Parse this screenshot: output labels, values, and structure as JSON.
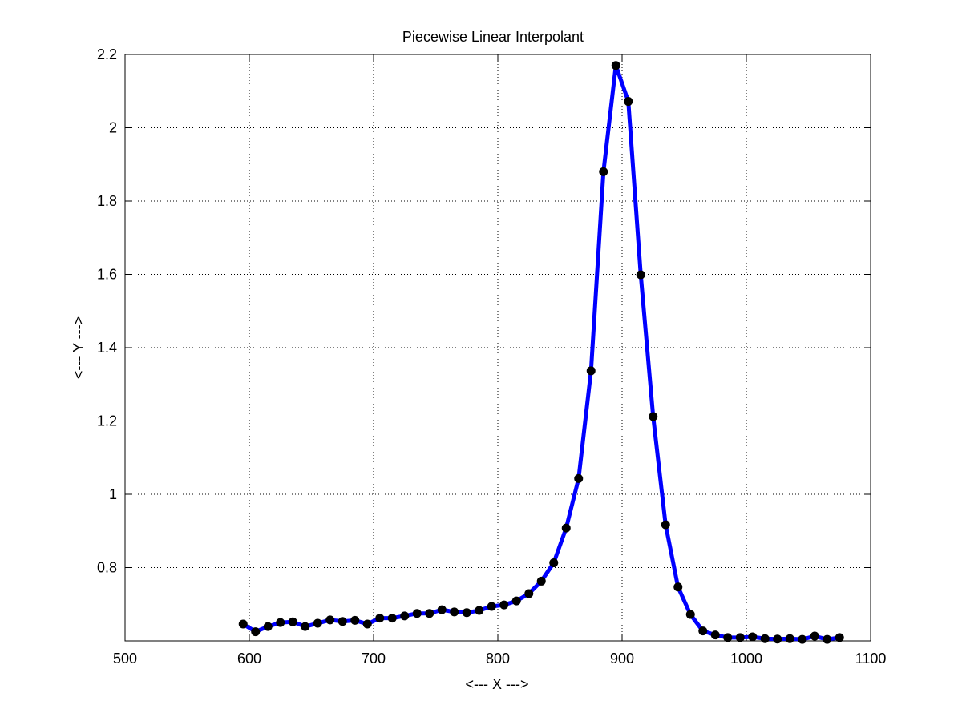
{
  "chart_data": {
    "type": "line",
    "title": "Piecewise Linear Interpolant",
    "xlabel": "<--- X --->",
    "ylabel": "<--- Y --->",
    "xlim": [
      500,
      1100
    ],
    "ylim": [
      0.6,
      2.2
    ],
    "xticks": [
      500,
      600,
      700,
      800,
      900,
      1000,
      1100
    ],
    "xtick_labels": [
      "500",
      "600",
      "700",
      "800",
      "900",
      "1000",
      "1100"
    ],
    "yticks": [
      0.8,
      1.0,
      1.2,
      1.4,
      1.6,
      1.8,
      2.0,
      2.2
    ],
    "ytick_labels": [
      "0.8",
      "1",
      "1.2",
      "1.4",
      "1.6",
      "1.8",
      "2",
      "2.2"
    ],
    "grid": true,
    "series": [
      {
        "line_color": "#0000ff",
        "marker_color": "#000000",
        "x": [
          595,
          605,
          615,
          625,
          635,
          645,
          655,
          665,
          675,
          685,
          695,
          705,
          715,
          725,
          735,
          745,
          755,
          765,
          775,
          785,
          795,
          805,
          815,
          825,
          835,
          845,
          855,
          865,
          875,
          885,
          895,
          905,
          915,
          925,
          935,
          945,
          955,
          965,
          975,
          985,
          995,
          1005,
          1015,
          1025,
          1035,
          1045,
          1055,
          1065,
          1075
        ],
        "y": [
          0.646,
          0.625,
          0.639,
          0.65,
          0.652,
          0.639,
          0.648,
          0.657,
          0.653,
          0.656,
          0.646,
          0.662,
          0.662,
          0.668,
          0.675,
          0.675,
          0.685,
          0.679,
          0.677,
          0.683,
          0.694,
          0.698,
          0.709,
          0.729,
          0.763,
          0.813,
          0.908,
          1.043,
          1.337,
          1.88,
          2.17,
          2.072,
          1.599,
          1.212,
          0.917,
          0.747,
          0.672,
          0.627,
          0.616,
          0.609,
          0.609,
          0.611,
          0.606,
          0.605,
          0.606,
          0.604,
          0.613,
          0.604,
          0.609
        ]
      }
    ]
  }
}
